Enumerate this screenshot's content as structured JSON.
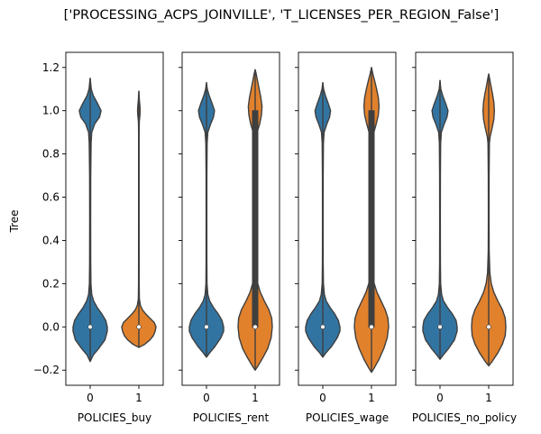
{
  "chart_data": {
    "type": "violin",
    "title": "['PROCESSING_ACPS_JOINVILLE', 'T_LICENSES_PER_REGION_False']",
    "ylabel": "Tree",
    "ylim": [
      -0.27,
      1.27
    ],
    "yticks": [
      -0.2,
      0.0,
      0.2,
      0.4,
      0.6,
      0.8,
      1.0,
      1.2
    ],
    "ytick_labels": [
      "−0.2",
      "0.0",
      "0.2",
      "0.4",
      "0.6",
      "0.8",
      "1.0",
      "1.2"
    ],
    "categories": [
      "0",
      "1"
    ],
    "colors": {
      "0": "#3274a1",
      "1": "#e1812c",
      "edge": "#3f3f3f"
    },
    "grid": false,
    "panels": [
      {
        "xlabel": "POLICIES_buy",
        "violins": [
          {
            "category": "0",
            "min": -0.16,
            "max": 1.15,
            "median": 0.0,
            "q1": 0.0,
            "q3": 0.0,
            "density": [
              [
                -0.16,
                0.0
              ],
              [
                -0.13,
                0.04
              ],
              [
                -0.1,
                0.11
              ],
              [
                -0.06,
                0.19
              ],
              [
                -0.02,
                0.22
              ],
              [
                0.0,
                0.22
              ],
              [
                0.03,
                0.2
              ],
              [
                0.06,
                0.15
              ],
              [
                0.09,
                0.09
              ],
              [
                0.12,
                0.045
              ],
              [
                0.15,
                0.02
              ],
              [
                0.2,
                0.01
              ],
              [
                0.3,
                0.007
              ],
              [
                0.5,
                0.006
              ],
              [
                0.7,
                0.007
              ],
              [
                0.85,
                0.012
              ],
              [
                0.9,
                0.02
              ],
              [
                0.94,
                0.06
              ],
              [
                0.97,
                0.12
              ],
              [
                1.0,
                0.14
              ],
              [
                1.03,
                0.1
              ],
              [
                1.07,
                0.04
              ],
              [
                1.1,
                0.014
              ],
              [
                1.13,
                0.006
              ],
              [
                1.15,
                0.0
              ]
            ]
          },
          {
            "category": "1",
            "min": -0.095,
            "max": 1.09,
            "median": 0.0,
            "q1": 0.0,
            "q3": 0.0,
            "density": [
              [
                -0.095,
                0.0
              ],
              [
                -0.08,
                0.14
              ],
              [
                -0.06,
                0.26
              ],
              [
                -0.04,
                0.34
              ],
              [
                -0.02,
                0.38
              ],
              [
                0.0,
                0.4
              ],
              [
                0.02,
                0.36
              ],
              [
                0.04,
                0.26
              ],
              [
                0.06,
                0.16
              ],
              [
                0.08,
                0.08
              ],
              [
                0.1,
                0.035
              ],
              [
                0.13,
                0.012
              ],
              [
                0.2,
                0.007
              ],
              [
                0.5,
                0.006
              ],
              [
                0.9,
                0.006
              ],
              [
                0.95,
                0.01
              ],
              [
                0.98,
                0.025
              ],
              [
                1.0,
                0.03
              ],
              [
                1.02,
                0.025
              ],
              [
                1.05,
                0.012
              ],
              [
                1.09,
                0.0
              ]
            ]
          }
        ]
      },
      {
        "xlabel": "POLICIES_rent",
        "violins": [
          {
            "category": "0",
            "min": -0.14,
            "max": 1.13,
            "median": 0.0,
            "q1": 0.0,
            "q3": 0.0,
            "density": [
              [
                -0.14,
                0.0
              ],
              [
                -0.12,
                0.06
              ],
              [
                -0.09,
                0.16
              ],
              [
                -0.05,
                0.27
              ],
              [
                -0.02,
                0.32
              ],
              [
                0.0,
                0.32
              ],
              [
                0.03,
                0.29
              ],
              [
                0.06,
                0.22
              ],
              [
                0.09,
                0.13
              ],
              [
                0.12,
                0.06
              ],
              [
                0.15,
                0.025
              ],
              [
                0.2,
                0.01
              ],
              [
                0.3,
                0.007
              ],
              [
                0.5,
                0.006
              ],
              [
                0.7,
                0.007
              ],
              [
                0.85,
                0.012
              ],
              [
                0.9,
                0.025
              ],
              [
                0.94,
                0.08
              ],
              [
                0.97,
                0.13
              ],
              [
                1.0,
                0.15
              ],
              [
                1.03,
                0.11
              ],
              [
                1.07,
                0.05
              ],
              [
                1.1,
                0.015
              ],
              [
                1.13,
                0.0
              ]
            ]
          },
          {
            "category": "1",
            "min": -0.2,
            "max": 1.19,
            "median": 0.0,
            "q1": 0.0,
            "q3": 1.0,
            "density": [
              [
                -0.2,
                0.0
              ],
              [
                -0.18,
                0.05
              ],
              [
                -0.14,
                0.14
              ],
              [
                -0.1,
                0.22
              ],
              [
                -0.05,
                0.28
              ],
              [
                0.0,
                0.3
              ],
              [
                0.04,
                0.29
              ],
              [
                0.08,
                0.24
              ],
              [
                0.12,
                0.16
              ],
              [
                0.16,
                0.09
              ],
              [
                0.2,
                0.045
              ],
              [
                0.25,
                0.02
              ],
              [
                0.35,
                0.01
              ],
              [
                0.5,
                0.008
              ],
              [
                0.7,
                0.009
              ],
              [
                0.85,
                0.015
              ],
              [
                0.9,
                0.035
              ],
              [
                0.94,
                0.08
              ],
              [
                0.98,
                0.11
              ],
              [
                1.02,
                0.12
              ],
              [
                1.06,
                0.1
              ],
              [
                1.1,
                0.07
              ],
              [
                1.14,
                0.04
              ],
              [
                1.17,
                0.018
              ],
              [
                1.19,
                0.0
              ]
            ]
          }
        ]
      },
      {
        "xlabel": "POLICIES_wage",
        "violins": [
          {
            "category": "0",
            "min": -0.14,
            "max": 1.13,
            "median": 0.0,
            "q1": 0.0,
            "q3": 0.0,
            "density": [
              [
                -0.14,
                0.0
              ],
              [
                -0.12,
                0.06
              ],
              [
                -0.09,
                0.17
              ],
              [
                -0.05,
                0.28
              ],
              [
                -0.02,
                0.33
              ],
              [
                0.0,
                0.33
              ],
              [
                0.03,
                0.3
              ],
              [
                0.06,
                0.23
              ],
              [
                0.09,
                0.14
              ],
              [
                0.12,
                0.065
              ],
              [
                0.15,
                0.03
              ],
              [
                0.2,
                0.012
              ],
              [
                0.3,
                0.007
              ],
              [
                0.5,
                0.006
              ],
              [
                0.7,
                0.007
              ],
              [
                0.85,
                0.012
              ],
              [
                0.9,
                0.025
              ],
              [
                0.94,
                0.08
              ],
              [
                0.97,
                0.13
              ],
              [
                1.0,
                0.15
              ],
              [
                1.03,
                0.11
              ],
              [
                1.07,
                0.05
              ],
              [
                1.1,
                0.015
              ],
              [
                1.13,
                0.0
              ]
            ]
          },
          {
            "category": "1",
            "min": -0.21,
            "max": 1.2,
            "median": 0.0,
            "q1": 0.0,
            "q3": 1.0,
            "density": [
              [
                -0.21,
                0.0
              ],
              [
                -0.19,
                0.04
              ],
              [
                -0.15,
                0.11
              ],
              [
                -0.1,
                0.18
              ],
              [
                -0.05,
                0.23
              ],
              [
                0.0,
                0.25
              ],
              [
                0.04,
                0.24
              ],
              [
                0.08,
                0.2
              ],
              [
                0.12,
                0.14
              ],
              [
                0.16,
                0.08
              ],
              [
                0.2,
                0.04
              ],
              [
                0.25,
                0.018
              ],
              [
                0.35,
                0.01
              ],
              [
                0.5,
                0.008
              ],
              [
                0.7,
                0.009
              ],
              [
                0.85,
                0.015
              ],
              [
                0.9,
                0.035
              ],
              [
                0.94,
                0.07
              ],
              [
                0.98,
                0.1
              ],
              [
                1.02,
                0.11
              ],
              [
                1.06,
                0.1
              ],
              [
                1.1,
                0.075
              ],
              [
                1.14,
                0.045
              ],
              [
                1.17,
                0.02
              ],
              [
                1.2,
                0.0
              ]
            ]
          }
        ]
      },
      {
        "xlabel": "POLICIES_no_policy",
        "violins": [
          {
            "category": "0",
            "min": -0.15,
            "max": 1.14,
            "median": 0.0,
            "q1": 0.0,
            "q3": 0.0,
            "density": [
              [
                -0.15,
                0.0
              ],
              [
                -0.13,
                0.06
              ],
              [
                -0.1,
                0.16
              ],
              [
                -0.06,
                0.27
              ],
              [
                -0.02,
                0.32
              ],
              [
                0.0,
                0.32
              ],
              [
                0.03,
                0.3
              ],
              [
                0.06,
                0.23
              ],
              [
                0.09,
                0.14
              ],
              [
                0.12,
                0.065
              ],
              [
                0.15,
                0.03
              ],
              [
                0.2,
                0.012
              ],
              [
                0.3,
                0.007
              ],
              [
                0.5,
                0.006
              ],
              [
                0.7,
                0.007
              ],
              [
                0.85,
                0.012
              ],
              [
                0.9,
                0.025
              ],
              [
                0.94,
                0.08
              ],
              [
                0.97,
                0.13
              ],
              [
                1.0,
                0.15
              ],
              [
                1.03,
                0.11
              ],
              [
                1.07,
                0.05
              ],
              [
                1.1,
                0.015
              ],
              [
                1.14,
                0.0
              ]
            ]
          },
          {
            "category": "1",
            "min": -0.18,
            "max": 1.17,
            "median": 0.0,
            "q1": 0.0,
            "q3": 0.0,
            "density": [
              [
                -0.18,
                0.0
              ],
              [
                -0.16,
                0.06
              ],
              [
                -0.12,
                0.16
              ],
              [
                -0.08,
                0.24
              ],
              [
                -0.04,
                0.29
              ],
              [
                0.0,
                0.3
              ],
              [
                0.04,
                0.29
              ],
              [
                0.08,
                0.24
              ],
              [
                0.12,
                0.16
              ],
              [
                0.16,
                0.09
              ],
              [
                0.2,
                0.045
              ],
              [
                0.25,
                0.02
              ],
              [
                0.35,
                0.008
              ],
              [
                0.5,
                0.006
              ],
              [
                0.7,
                0.007
              ],
              [
                0.85,
                0.012
              ],
              [
                0.88,
                0.025
              ],
              [
                0.92,
                0.06
              ],
              [
                0.96,
                0.09
              ],
              [
                1.0,
                0.1
              ],
              [
                1.04,
                0.09
              ],
              [
                1.08,
                0.065
              ],
              [
                1.12,
                0.035
              ],
              [
                1.15,
                0.015
              ],
              [
                1.17,
                0.0
              ]
            ]
          }
        ]
      }
    ]
  }
}
